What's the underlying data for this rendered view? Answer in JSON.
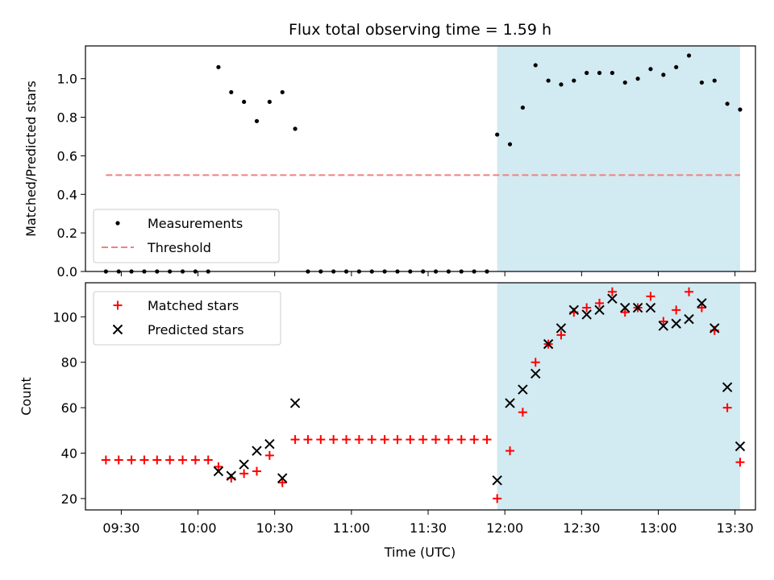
{
  "chart_data": [
    {
      "type": "scatter",
      "title": "Flux total observing time = 1.59 h",
      "xlabel": "",
      "ylabel": "Matched/Predicted stars",
      "xlim": [
        "09:16",
        "13:38"
      ],
      "ylim": [
        0,
        1.17
      ],
      "yticks": [
        0.0,
        0.2,
        0.4,
        0.6,
        0.8,
        1.0
      ],
      "ytick_labels": [
        "0.0",
        "0.2",
        "0.4",
        "0.6",
        "0.8",
        "1.0"
      ],
      "shaded_region": {
        "start": "11:57",
        "end": "13:32",
        "color": "#add8e6"
      },
      "legend_position": "lower-left",
      "series": [
        {
          "name": "Measurements",
          "marker": "dot",
          "color": "#000000",
          "points": [
            [
              "09:24",
              0.0
            ],
            [
              "09:29",
              0.0
            ],
            [
              "09:34",
              0.0
            ],
            [
              "09:39",
              0.0
            ],
            [
              "09:44",
              0.0
            ],
            [
              "09:49",
              0.0
            ],
            [
              "09:54",
              0.0
            ],
            [
              "09:59",
              0.0
            ],
            [
              "10:04",
              0.0
            ],
            [
              "10:08",
              1.06
            ],
            [
              "10:13",
              0.93
            ],
            [
              "10:18",
              0.88
            ],
            [
              "10:23",
              0.78
            ],
            [
              "10:28",
              0.88
            ],
            [
              "10:33",
              0.93
            ],
            [
              "10:38",
              0.74
            ],
            [
              "10:43",
              0.0
            ],
            [
              "10:48",
              0.0
            ],
            [
              "10:53",
              0.0
            ],
            [
              "10:58",
              0.0
            ],
            [
              "11:03",
              0.0
            ],
            [
              "11:08",
              0.0
            ],
            [
              "11:13",
              0.0
            ],
            [
              "11:18",
              0.0
            ],
            [
              "11:23",
              0.0
            ],
            [
              "11:28",
              0.0
            ],
            [
              "11:33",
              0.0
            ],
            [
              "11:38",
              0.0
            ],
            [
              "11:43",
              0.0
            ],
            [
              "11:48",
              0.0
            ],
            [
              "11:53",
              0.0
            ],
            [
              "11:57",
              0.71
            ],
            [
              "12:02",
              0.66
            ],
            [
              "12:07",
              0.85
            ],
            [
              "12:12",
              1.07
            ],
            [
              "12:17",
              0.99
            ],
            [
              "12:22",
              0.97
            ],
            [
              "12:27",
              0.99
            ],
            [
              "12:32",
              1.03
            ],
            [
              "12:37",
              1.03
            ],
            [
              "12:42",
              1.03
            ],
            [
              "12:47",
              0.98
            ],
            [
              "12:52",
              1.0
            ],
            [
              "12:57",
              1.05
            ],
            [
              "13:02",
              1.02
            ],
            [
              "13:07",
              1.06
            ],
            [
              "13:12",
              1.12
            ],
            [
              "13:17",
              0.98
            ],
            [
              "13:22",
              0.99
            ],
            [
              "13:27",
              0.87
            ],
            [
              "13:32",
              0.84
            ]
          ]
        },
        {
          "name": "Threshold",
          "marker": "dashed-line",
          "color": "#f08080",
          "points": [
            [
              "09:24",
              0.5
            ],
            [
              "13:32",
              0.5
            ]
          ]
        }
      ]
    },
    {
      "type": "scatter",
      "xlabel": "Time (UTC)",
      "ylabel": "Count",
      "xlim": [
        "09:16",
        "13:38"
      ],
      "ylim": [
        15,
        115
      ],
      "xticks": [
        "09:30",
        "10:00",
        "10:30",
        "11:00",
        "11:30",
        "12:00",
        "12:30",
        "13:00",
        "13:30"
      ],
      "yticks": [
        20,
        40,
        60,
        80,
        100
      ],
      "ytick_labels": [
        "20",
        "40",
        "60",
        "80",
        "100"
      ],
      "shaded_region": {
        "start": "11:57",
        "end": "13:32",
        "color": "#add8e6"
      },
      "legend_position": "top-left",
      "series": [
        {
          "name": "Matched stars",
          "marker": "plus",
          "color": "#ff0000",
          "points": [
            [
              "09:24",
              37
            ],
            [
              "09:29",
              37
            ],
            [
              "09:34",
              37
            ],
            [
              "09:39",
              37
            ],
            [
              "09:44",
              37
            ],
            [
              "09:49",
              37
            ],
            [
              "09:54",
              37
            ],
            [
              "09:59",
              37
            ],
            [
              "10:04",
              37
            ],
            [
              "10:08",
              34
            ],
            [
              "10:13",
              29
            ],
            [
              "10:18",
              31
            ],
            [
              "10:23",
              32
            ],
            [
              "10:28",
              39
            ],
            [
              "10:33",
              27
            ],
            [
              "10:38",
              46
            ],
            [
              "10:43",
              46
            ],
            [
              "10:48",
              46
            ],
            [
              "10:53",
              46
            ],
            [
              "10:58",
              46
            ],
            [
              "11:03",
              46
            ],
            [
              "11:08",
              46
            ],
            [
              "11:13",
              46
            ],
            [
              "11:18",
              46
            ],
            [
              "11:23",
              46
            ],
            [
              "11:28",
              46
            ],
            [
              "11:33",
              46
            ],
            [
              "11:38",
              46
            ],
            [
              "11:43",
              46
            ],
            [
              "11:48",
              46
            ],
            [
              "11:53",
              46
            ],
            [
              "11:57",
              20
            ],
            [
              "12:02",
              41
            ],
            [
              "12:07",
              58
            ],
            [
              "12:12",
              80
            ],
            [
              "12:17",
              88
            ],
            [
              "12:22",
              92
            ],
            [
              "12:27",
              102
            ],
            [
              "12:32",
              104
            ],
            [
              "12:37",
              106
            ],
            [
              "12:42",
              111
            ],
            [
              "12:47",
              102
            ],
            [
              "12:52",
              104
            ],
            [
              "12:57",
              109
            ],
            [
              "13:02",
              98
            ],
            [
              "13:07",
              103
            ],
            [
              "13:12",
              111
            ],
            [
              "13:17",
              104
            ],
            [
              "13:22",
              94
            ],
            [
              "13:27",
              60
            ],
            [
              "13:32",
              36
            ]
          ]
        },
        {
          "name": "Predicted stars",
          "marker": "x",
          "color": "#000000",
          "points": [
            [
              "10:08",
              32
            ],
            [
              "10:13",
              30
            ],
            [
              "10:18",
              35
            ],
            [
              "10:23",
              41
            ],
            [
              "10:28",
              44
            ],
            [
              "10:33",
              29
            ],
            [
              "10:38",
              62
            ],
            [
              "11:57",
              28
            ],
            [
              "12:02",
              62
            ],
            [
              "12:07",
              68
            ],
            [
              "12:12",
              75
            ],
            [
              "12:17",
              88
            ],
            [
              "12:22",
              95
            ],
            [
              "12:27",
              103
            ],
            [
              "12:32",
              101
            ],
            [
              "12:37",
              103
            ],
            [
              "12:42",
              108
            ],
            [
              "12:47",
              104
            ],
            [
              "12:52",
              104
            ],
            [
              "12:57",
              104
            ],
            [
              "13:02",
              96
            ],
            [
              "13:07",
              97
            ],
            [
              "13:12",
              99
            ],
            [
              "13:17",
              106
            ],
            [
              "13:22",
              95
            ],
            [
              "13:27",
              69
            ],
            [
              "13:32",
              43
            ]
          ]
        }
      ]
    }
  ]
}
